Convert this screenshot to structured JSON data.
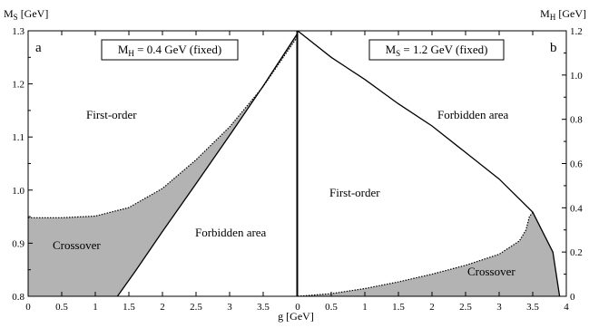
{
  "chart_data": [
    {
      "type": "area",
      "panel_label": "a",
      "ylabel_main": "M",
      "ylabel_sub": "S",
      "ylabel_unit": " [GeV]",
      "fixed_main": "M",
      "fixed_sub": "H",
      "fixed_value": " = 0.4 GeV (fixed)",
      "xlim": [
        0,
        4.0
      ],
      "ylim": [
        0.8,
        1.3
      ],
      "x_ticks": [
        0,
        0.5,
        1,
        1.5,
        2,
        2.5,
        3,
        3.5
      ],
      "x_tick_labels": [
        "0",
        "0.5",
        "1",
        "1.5",
        "2",
        "2.5",
        "3",
        "3.5"
      ],
      "y_ticks": [
        0.8,
        0.9,
        1.0,
        1.1,
        1.2,
        1.3
      ],
      "y_tick_labels": [
        "0.8",
        "0.9",
        "1.0",
        "1.1",
        "1.2",
        "1.3"
      ],
      "regions": [
        "First-order",
        "Crossover",
        "Forbidden area"
      ],
      "first_order_boundary": [
        [
          0,
          0.948
        ],
        [
          0.5,
          0.948
        ],
        [
          1.0,
          0.951
        ],
        [
          1.5,
          0.967
        ],
        [
          2.0,
          1.003
        ],
        [
          2.5,
          1.057
        ],
        [
          3.0,
          1.119
        ],
        [
          3.5,
          1.195
        ],
        [
          4.0,
          1.287
        ]
      ],
      "forbidden_boundary": [
        [
          1.33,
          0.8
        ],
        [
          1.6,
          0.848
        ],
        [
          2.0,
          0.922
        ],
        [
          2.5,
          1.012
        ],
        [
          3.0,
          1.103
        ],
        [
          3.5,
          1.196
        ],
        [
          4.0,
          1.293
        ]
      ]
    },
    {
      "type": "area",
      "panel_label": "b",
      "ylabel_main": "M",
      "ylabel_sub": "H",
      "ylabel_unit": " [GeV]",
      "fixed_main": "M",
      "fixed_sub": "S",
      "fixed_value": " = 1.2 GeV (fixed)",
      "xlabel": "g [GeV]",
      "xlim": [
        0,
        4.0
      ],
      "ylim": [
        0,
        1.2
      ],
      "x_ticks": [
        0,
        0.5,
        1,
        1.5,
        2,
        2.5,
        3,
        3.5,
        4
      ],
      "x_tick_labels": [
        "0",
        "0.5",
        "1",
        "1.5",
        "2",
        "2.5",
        "3",
        "3.5",
        "4"
      ],
      "y_ticks": [
        0,
        0.2,
        0.4,
        0.6,
        0.8,
        1.0,
        1.2
      ],
      "y_tick_labels": [
        "0",
        "0.2",
        "0.4",
        "0.6",
        "0.8",
        "1.0",
        "1.2"
      ],
      "regions": [
        "Forbidden area",
        "First-order",
        "Crossover"
      ],
      "forbidden_boundary": [
        [
          0,
          1.2
        ],
        [
          0.5,
          1.08
        ],
        [
          1.0,
          0.98
        ],
        [
          1.5,
          0.87
        ],
        [
          2.0,
          0.77
        ],
        [
          2.5,
          0.65
        ],
        [
          3.0,
          0.53
        ],
        [
          3.5,
          0.38
        ],
        [
          3.8,
          0.2
        ],
        [
          3.9,
          0.0
        ]
      ],
      "first_order_boundary": [
        [
          0,
          0.0
        ],
        [
          0.5,
          0.012
        ],
        [
          1.0,
          0.035
        ],
        [
          1.5,
          0.065
        ],
        [
          2.0,
          0.1
        ],
        [
          2.5,
          0.14
        ],
        [
          3.0,
          0.19
        ],
        [
          3.3,
          0.25
        ],
        [
          3.4,
          0.3
        ],
        [
          3.45,
          0.36
        ],
        [
          3.5,
          0.38
        ]
      ]
    }
  ]
}
